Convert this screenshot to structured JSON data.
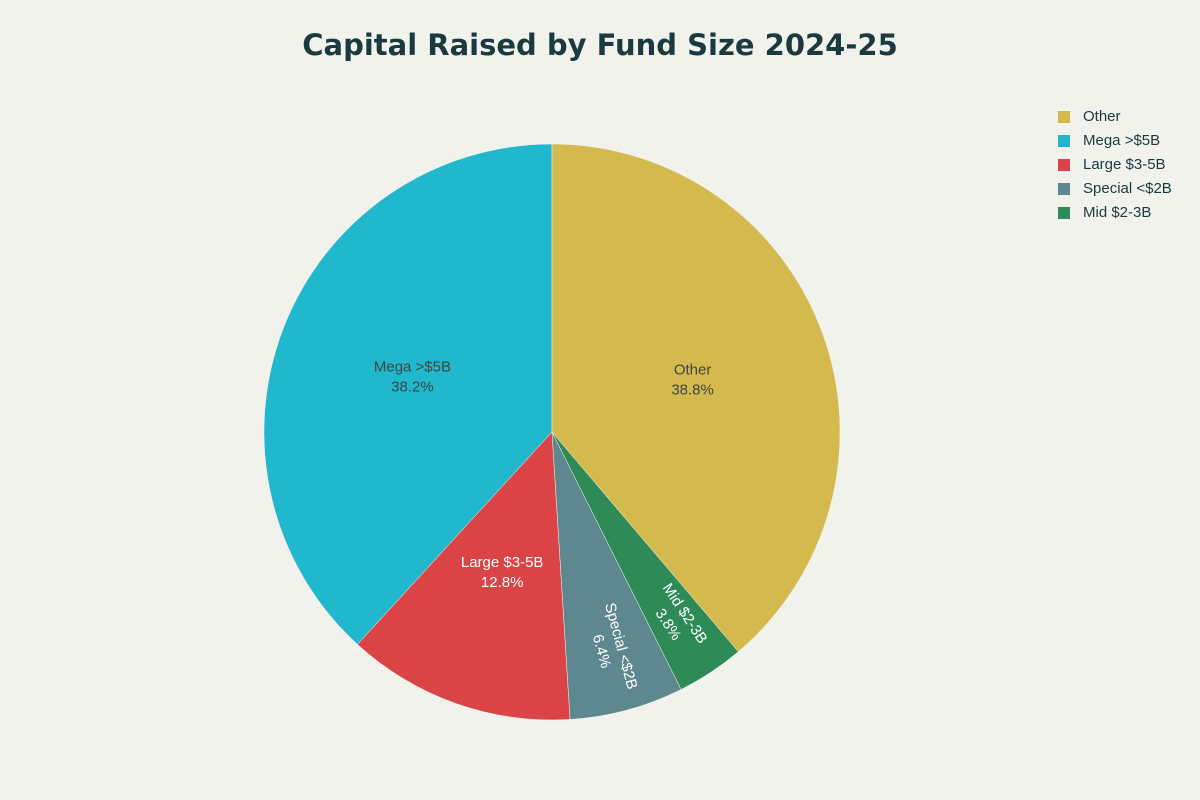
{
  "chart_data": {
    "type": "pie",
    "title": "Capital Raised by Fund Size 2024-25",
    "categories": [
      "Other",
      "Mega >$5B",
      "Large $3-5B",
      "Special <$2B",
      "Mid $2-3B"
    ],
    "values": [
      38.8,
      38.2,
      12.8,
      6.4,
      3.8
    ],
    "value_labels": [
      "38.8%",
      "38.2%",
      "12.8%",
      "6.4%",
      "3.8%"
    ],
    "colors": [
      "#d4b94e",
      "#21b7cc",
      "#db4447",
      "#5e8790",
      "#2e8b57"
    ],
    "legend": "top-right"
  }
}
